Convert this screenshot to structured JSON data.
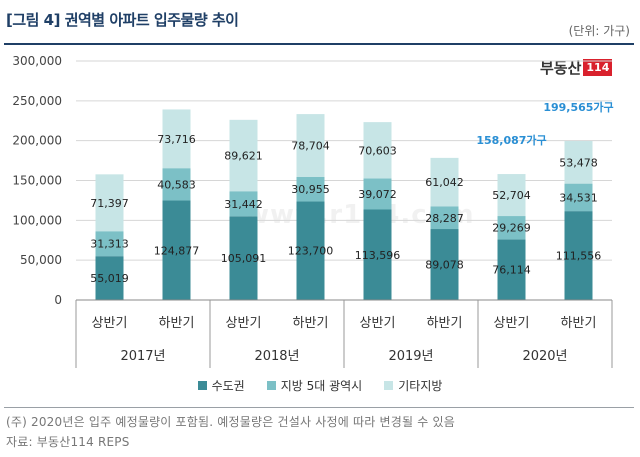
{
  "header": {
    "title": "[그림 4] 권역별 아파트 입주물량 추이",
    "unit": "(단위: 가구)"
  },
  "brand": {
    "name": "부동산",
    "num": "114"
  },
  "watermark": "www.r114.com",
  "colors": {
    "capital": "#3b8b96",
    "metro": "#7cc0c6",
    "other": "#c7e5e6"
  },
  "chart_data": {
    "type": "bar",
    "stacked": true,
    "categories": [
      "상반기",
      "하반기",
      "상반기",
      "하반기",
      "상반기",
      "하반기",
      "상반기",
      "하반기"
    ],
    "groups": [
      {
        "label": "2017년",
        "span": [
          0,
          1
        ]
      },
      {
        "label": "2018년",
        "span": [
          2,
          3
        ]
      },
      {
        "label": "2019년",
        "span": [
          4,
          5
        ]
      },
      {
        "label": "2020년",
        "span": [
          6,
          7
        ]
      }
    ],
    "series": [
      {
        "name": "수도권",
        "values": [
          55019,
          124877,
          105091,
          123700,
          113596,
          89078,
          76114,
          111556
        ],
        "labels": [
          "55,019",
          "124,877",
          "105,091",
          "123,700",
          "113,596",
          "89,078",
          "76,114",
          "111,556"
        ]
      },
      {
        "name": "지방 5대 광역시",
        "values": [
          31313,
          40583,
          31442,
          30955,
          39072,
          28287,
          29269,
          34531
        ],
        "labels": [
          "31,313",
          "40,583",
          "31,442",
          "30,955",
          "39,072",
          "28,287",
          "29,269",
          "34,531"
        ]
      },
      {
        "name": "기타지방",
        "values": [
          71397,
          73716,
          89621,
          78704,
          70603,
          61042,
          52704,
          53478
        ],
        "labels": [
          "71,397",
          "73,716",
          "89,621",
          "78,704",
          "70,603",
          "61,042",
          "52,704",
          "53,478"
        ]
      }
    ],
    "totals": [
      {
        "index": 6,
        "label": "158,087가구"
      },
      {
        "index": 7,
        "label": "199,565가구"
      }
    ],
    "ylim": [
      0,
      300000
    ],
    "yticks": [
      "0",
      "50,000",
      "100,000",
      "150,000",
      "200,000",
      "250,000",
      "300,000"
    ],
    "ytick_values": [
      0,
      50000,
      100000,
      150000,
      200000,
      250000,
      300000
    ],
    "legend": "bottom"
  },
  "notes": [
    "(주) 2020년은 입주 예정물량이 포함됨. 예정물량은 건설사 사정에 따라 변경될 수 있음",
    "자료: 부동산114 REPS"
  ]
}
